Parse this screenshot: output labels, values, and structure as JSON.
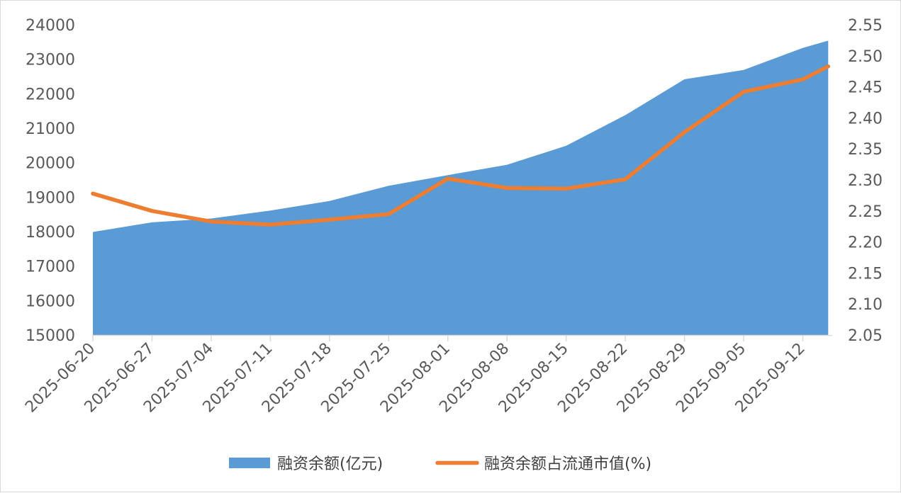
{
  "chart_data": {
    "type": "area",
    "title": "",
    "xlabel": "",
    "ylabel": "",
    "x_ticks": [
      "2025-06-20",
      "2025-06-27",
      "2025-07-04",
      "2025-07-11",
      "2025-07-18",
      "2025-07-25",
      "2025-08-01",
      "2025-08-08",
      "2025-08-15",
      "2025-08-22",
      "2025-08-29",
      "2025-09-05",
      "2025-09-12"
    ],
    "x": [
      "2025-06-20",
      "2025-06-27",
      "2025-07-04",
      "2025-07-11",
      "2025-07-18",
      "2025-07-25",
      "2025-08-01",
      "2025-08-08",
      "2025-08-15",
      "2025-08-22",
      "2025-08-29",
      "2025-09-05",
      "2025-09-12",
      "2025-09-15"
    ],
    "y_left": {
      "ylim": [
        15000,
        24000
      ],
      "ticks": [
        "15000",
        "16000",
        "17000",
        "18000",
        "19000",
        "20000",
        "21000",
        "22000",
        "23000",
        "24000"
      ]
    },
    "y_right": {
      "ylim": [
        2.05,
        2.55
      ],
      "ticks": [
        "2.05",
        "2.10",
        "2.15",
        "2.20",
        "2.25",
        "2.30",
        "2.35",
        "2.40",
        "2.45",
        "2.50",
        "2.55"
      ]
    },
    "series": [
      {
        "name": "融资余额(亿元)",
        "type": "area",
        "axis": "left",
        "color": "#5B9BD5",
        "values": [
          17990,
          18270,
          18380,
          18610,
          18890,
          19330,
          19640,
          19940,
          20490,
          21380,
          22420,
          22690,
          23330,
          23540
        ]
      },
      {
        "name": "融资余额占流通市值(%)",
        "type": "line",
        "axis": "right",
        "color": "#ED7D31",
        "values": [
          2.278,
          2.25,
          2.233,
          2.228,
          2.236,
          2.245,
          2.302,
          2.287,
          2.286,
          2.301,
          2.377,
          2.442,
          2.462,
          2.483
        ]
      }
    ],
    "legend": "bottom",
    "grid": false
  }
}
